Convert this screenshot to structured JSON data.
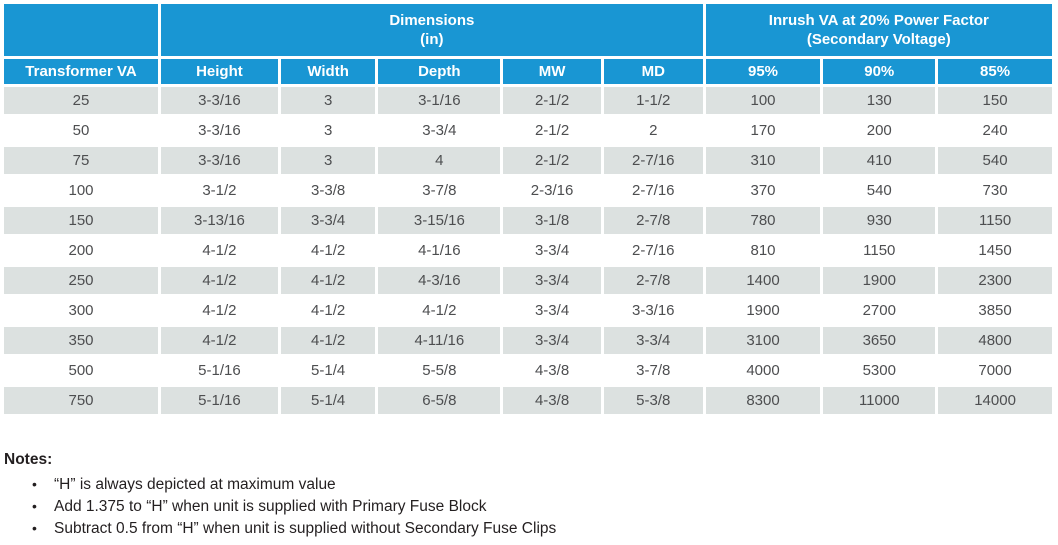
{
  "colors": {
    "header_blue": "#1996d3",
    "row_gray": "#dce1e0",
    "data_text": "#4d4e50",
    "notes_text": "#231f20"
  },
  "table": {
    "group_headers": {
      "dimensions": "Dimensions\n(in)",
      "inrush": "Inrush VA at 20% Power Factor\n(Secondary Voltage)"
    },
    "columns": [
      "Transformer VA",
      "Height",
      "Width",
      "Depth",
      "MW",
      "MD",
      "95%",
      "90%",
      "85%"
    ],
    "rows": [
      [
        "25",
        "3-3/16",
        "3",
        "3-1/16",
        "2-1/2",
        "1-1/2",
        "100",
        "130",
        "150"
      ],
      [
        "50",
        "3-3/16",
        "3",
        "3-3/4",
        "2-1/2",
        "2",
        "170",
        "200",
        "240"
      ],
      [
        "75",
        "3-3/16",
        "3",
        "4",
        "2-1/2",
        "2-7/16",
        "310",
        "410",
        "540"
      ],
      [
        "100",
        "3-1/2",
        "3-3/8",
        "3-7/8",
        "2-3/16",
        "2-7/16",
        "370",
        "540",
        "730"
      ],
      [
        "150",
        "3-13/16",
        "3-3/4",
        "3-15/16",
        "3-1/8",
        "2-7/8",
        "780",
        "930",
        "1150"
      ],
      [
        "200",
        "4-1/2",
        "4-1/2",
        "4-1/16",
        "3-3/4",
        "2-7/16",
        "810",
        "1150",
        "1450"
      ],
      [
        "250",
        "4-1/2",
        "4-1/2",
        "4-3/16",
        "3-3/4",
        "2-7/8",
        "1400",
        "1900",
        "2300"
      ],
      [
        "300",
        "4-1/2",
        "4-1/2",
        "4-1/2",
        "3-3/4",
        "3-3/16",
        "1900",
        "2700",
        "3850"
      ],
      [
        "350",
        "4-1/2",
        "4-1/2",
        "4-11/16",
        "3-3/4",
        "3-3/4",
        "3100",
        "3650",
        "4800"
      ],
      [
        "500",
        "5-1/16",
        "5-1/4",
        "5-5/8",
        "4-3/8",
        "3-7/8",
        "4000",
        "5300",
        "7000"
      ],
      [
        "750",
        "5-1/16",
        "5-1/4",
        "6-5/8",
        "4-3/8",
        "5-3/8",
        "8300",
        "11000",
        "14000"
      ]
    ]
  },
  "notes": {
    "title": "Notes:",
    "bullet_glyph": "•",
    "items": [
      "“H” is always depicted at maximum value",
      "Add 1.375 to “H” when unit is supplied with Primary Fuse Block",
      "Subtract 0.5 from “H” when unit is supplied without Secondary Fuse Clips"
    ]
  }
}
